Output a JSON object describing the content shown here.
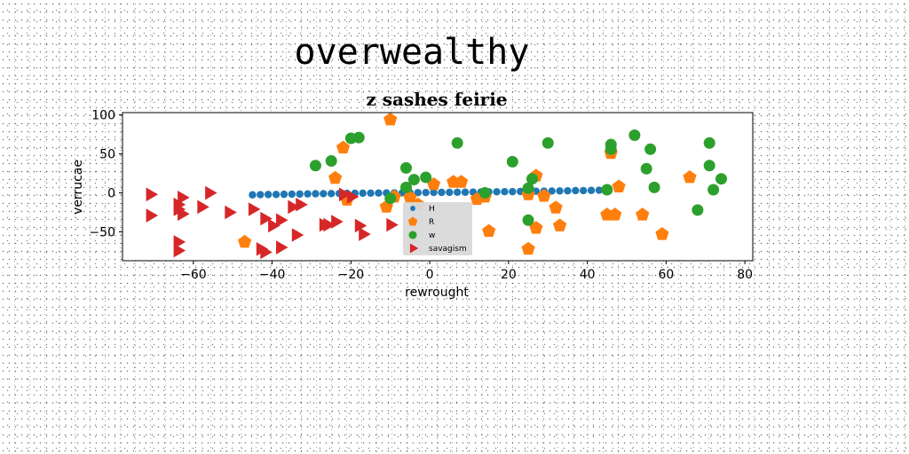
{
  "chart_data": {
    "type": "scatter",
    "suptitle": "overwealthy",
    "title": "z sashes feirie",
    "xlabel": "rewrought",
    "ylabel": "verrucae",
    "xlim": [
      -78,
      82
    ],
    "ylim": [
      -87,
      103
    ],
    "xticks": [
      -60,
      -40,
      -20,
      0,
      20,
      40,
      60,
      80
    ],
    "yticks": [
      -50,
      0,
      50,
      100
    ],
    "grid": false,
    "legend_position": "lower-center",
    "series": [
      {
        "name": "H",
        "marker": "circle-small",
        "color": "#1f77b4",
        "x": [
          -45,
          -43,
          -41,
          -39,
          -37,
          -35,
          -33,
          -31,
          -29,
          -27,
          -25,
          -23,
          -21,
          -19,
          -17,
          -15,
          -13,
          -11,
          -9,
          -7,
          -5,
          -3,
          -1,
          1,
          3,
          5,
          7,
          9,
          11,
          13,
          15,
          17,
          19,
          21,
          23,
          25,
          27,
          29,
          31,
          33,
          35,
          37,
          39,
          41,
          43,
          45
        ],
        "y": [
          -2.5,
          -2.3,
          -2.1,
          -2,
          -1.8,
          -1.6,
          -1.5,
          -1.3,
          -1.1,
          -1,
          -0.9,
          -0.7,
          -0.6,
          -0.5,
          -0.4,
          -0.3,
          -0.2,
          -0.1,
          0,
          0.1,
          0.2,
          0.3,
          0.4,
          0.5,
          0.6,
          0.7,
          0.8,
          0.9,
          1,
          1.1,
          1.3,
          1.4,
          1.5,
          1.6,
          1.8,
          1.9,
          2.1,
          2.2,
          2.4,
          2.5,
          2.7,
          2.9,
          3,
          3.2,
          3.4,
          3.6
        ]
      },
      {
        "name": "R",
        "marker": "pentagon",
        "color": "#ff7f0e",
        "x": [
          -47,
          -24,
          -22,
          -21,
          -11,
          -10,
          -9,
          -5,
          -3,
          1,
          6,
          8,
          12,
          14,
          15,
          25,
          25,
          27,
          27,
          29,
          32,
          33,
          45,
          46,
          47,
          48,
          54,
          59,
          66
        ],
        "y": [
          -63,
          19,
          58,
          -9,
          -18,
          94,
          -5,
          -6,
          -15,
          11,
          14,
          14,
          -8,
          -5,
          -49,
          -72,
          -2,
          -45,
          22,
          -4,
          -19,
          -42,
          -28,
          51,
          -28,
          8,
          -28,
          -53,
          20
        ]
      },
      {
        "name": "w",
        "marker": "circle",
        "color": "#2ca02c",
        "x": [
          -29,
          -25,
          -20,
          -18,
          -10,
          -6,
          -4,
          -1,
          -6,
          7,
          14,
          21,
          25,
          26,
          25,
          30,
          45,
          46,
          46,
          52,
          55,
          56,
          57,
          68,
          71,
          71,
          72,
          74
        ],
        "y": [
          35,
          41,
          70,
          71,
          -7,
          32,
          17,
          20,
          7,
          64,
          0,
          40,
          6,
          18,
          -35,
          64,
          4,
          56,
          62,
          74,
          31,
          56,
          7,
          -22,
          64,
          35,
          4,
          18
        ]
      },
      {
        "name": "savagism",
        "marker": "triangle-right",
        "color": "#d62728",
        "x": [
          -71,
          -71,
          -64,
          -64,
          -64,
          -63,
          -64,
          -63,
          -58,
          -56,
          -51,
          -45,
          -43,
          -42,
          -42,
          -40,
          -38,
          -38,
          -35,
          -34,
          -33,
          -27,
          -26,
          -24,
          -22,
          -20,
          -18,
          -17,
          -10
        ],
        "y": [
          -2,
          -29,
          -15,
          -63,
          -74,
          -6,
          -21,
          -27,
          -18,
          0,
          -25,
          -21,
          -72,
          -76,
          -33,
          -42,
          -70,
          -35,
          -18,
          -54,
          -15,
          -41,
          -41,
          -37,
          -2,
          -5,
          -42,
          -53,
          -41
        ]
      }
    ]
  }
}
